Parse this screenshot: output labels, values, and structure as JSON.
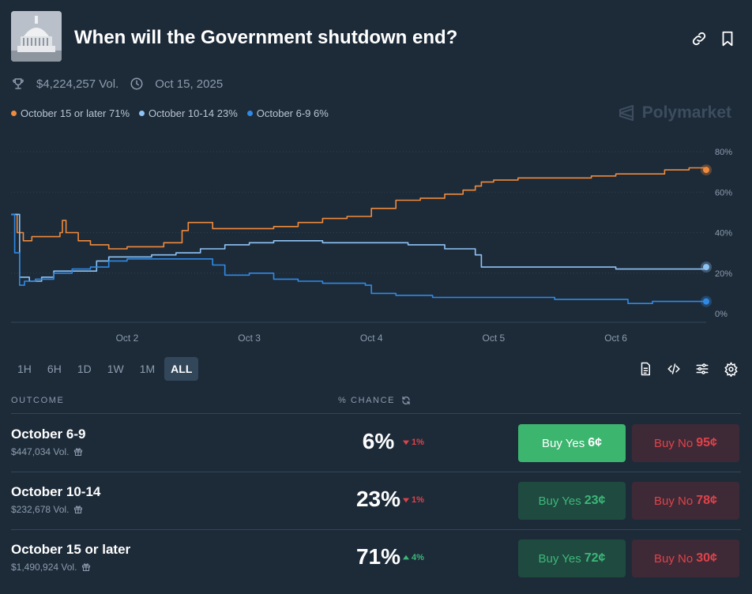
{
  "market": {
    "title": "When will the Government shutdown end?",
    "volume": "$4,224,257 Vol.",
    "end_date": "Oct 15, 2025"
  },
  "brand": "Polymarket",
  "legend": [
    {
      "label": "October 15 or later 71%",
      "color": "#f08a3c"
    },
    {
      "label": "October 10-14 23%",
      "color": "#8ec3f5"
    },
    {
      "label": "October 6-9 6%",
      "color": "#2f8ae6"
    }
  ],
  "chart_data": {
    "type": "line",
    "x_ticks": [
      "Oct 2",
      "Oct 3",
      "Oct 4",
      "Oct 5",
      "Oct 6"
    ],
    "y_ticks": [
      "80%",
      "60%",
      "40%",
      "20%",
      "0%"
    ],
    "ylim": [
      0,
      80
    ],
    "grid": true,
    "x_range": [
      1.05,
      6.74
    ],
    "series": [
      {
        "name": "October 15 or later",
        "color": "#f08a3c",
        "x": [
          1.05,
          1.1,
          1.15,
          1.22,
          1.35,
          1.45,
          1.47,
          1.5,
          1.6,
          1.7,
          1.75,
          1.85,
          2.0,
          2.15,
          2.3,
          2.45,
          2.5,
          2.7,
          3.0,
          3.2,
          3.4,
          3.6,
          3.8,
          4.0,
          4.2,
          4.4,
          4.6,
          4.75,
          4.85,
          4.9,
          5.0,
          5.2,
          5.5,
          5.8,
          6.0,
          6.2,
          6.4,
          6.6,
          6.74
        ],
        "y": [
          49,
          40,
          36,
          38,
          38,
          40,
          46,
          40,
          36,
          34,
          34,
          32,
          33,
          33,
          35,
          41,
          45,
          42,
          42,
          43,
          45,
          47,
          48,
          52,
          56,
          57,
          59,
          61,
          63,
          65,
          66,
          67,
          67,
          68,
          69,
          69,
          71,
          72,
          71
        ]
      },
      {
        "name": "October 10-14",
        "color": "#8ec3f5",
        "x": [
          1.05,
          1.12,
          1.2,
          1.3,
          1.4,
          1.5,
          1.6,
          1.75,
          1.85,
          2.0,
          2.2,
          2.4,
          2.6,
          2.8,
          3.0,
          3.2,
          3.4,
          3.6,
          3.8,
          4.0,
          4.3,
          4.6,
          4.85,
          4.9,
          5.0,
          5.2,
          5.5,
          5.8,
          6.0,
          6.2,
          6.5,
          6.74
        ],
        "y": [
          49,
          18,
          16,
          18,
          21,
          21,
          21,
          26,
          28,
          28,
          29,
          30,
          32,
          34,
          35,
          36,
          36,
          35,
          35,
          35,
          34,
          32,
          29,
          23,
          23,
          23,
          23,
          23,
          22,
          22,
          22,
          23
        ]
      },
      {
        "name": "October 6-9",
        "color": "#2f8ae6",
        "x": [
          1.05,
          1.08,
          1.12,
          1.16,
          1.25,
          1.4,
          1.55,
          1.7,
          1.85,
          2.0,
          2.2,
          2.4,
          2.6,
          2.7,
          2.8,
          2.9,
          3.0,
          3.2,
          3.4,
          3.6,
          3.8,
          3.95,
          4.0,
          4.2,
          4.5,
          5.0,
          5.5,
          6.0,
          6.1,
          6.3,
          6.5,
          6.74
        ],
        "y": [
          49,
          30,
          14,
          16,
          17,
          20,
          22,
          23,
          26,
          27,
          27,
          27,
          27,
          24,
          19,
          19,
          20,
          17,
          16,
          15,
          15,
          14,
          10,
          9,
          8,
          8,
          7,
          7,
          5,
          6,
          6,
          6
        ]
      }
    ]
  },
  "ranges": [
    {
      "label": "1H",
      "active": false
    },
    {
      "label": "6H",
      "active": false
    },
    {
      "label": "1D",
      "active": false
    },
    {
      "label": "1W",
      "active": false
    },
    {
      "label": "1M",
      "active": false
    },
    {
      "label": "ALL",
      "active": true
    }
  ],
  "table": {
    "col_outcome": "OUTCOME",
    "col_chance": "% CHANCE",
    "rows": [
      {
        "name": "October 6-9",
        "volume": "$447,034 Vol.",
        "chance": "6%",
        "change": "1%",
        "direction": "down",
        "yes_label": "Buy Yes",
        "yes_price": "6¢",
        "no_label": "Buy No",
        "no_price": "95¢"
      },
      {
        "name": "October 10-14",
        "volume": "$232,678 Vol.",
        "chance": "23%",
        "change": "1%",
        "direction": "down",
        "yes_label": "Buy Yes",
        "yes_price": "23¢",
        "no_label": "Buy No",
        "no_price": "78¢"
      },
      {
        "name": "October 15 or later",
        "volume": "$1,490,924 Vol.",
        "chance": "71%",
        "change": "4%",
        "direction": "up",
        "yes_label": "Buy Yes",
        "yes_price": "72¢",
        "no_label": "Buy No",
        "no_price": "30¢"
      }
    ]
  }
}
